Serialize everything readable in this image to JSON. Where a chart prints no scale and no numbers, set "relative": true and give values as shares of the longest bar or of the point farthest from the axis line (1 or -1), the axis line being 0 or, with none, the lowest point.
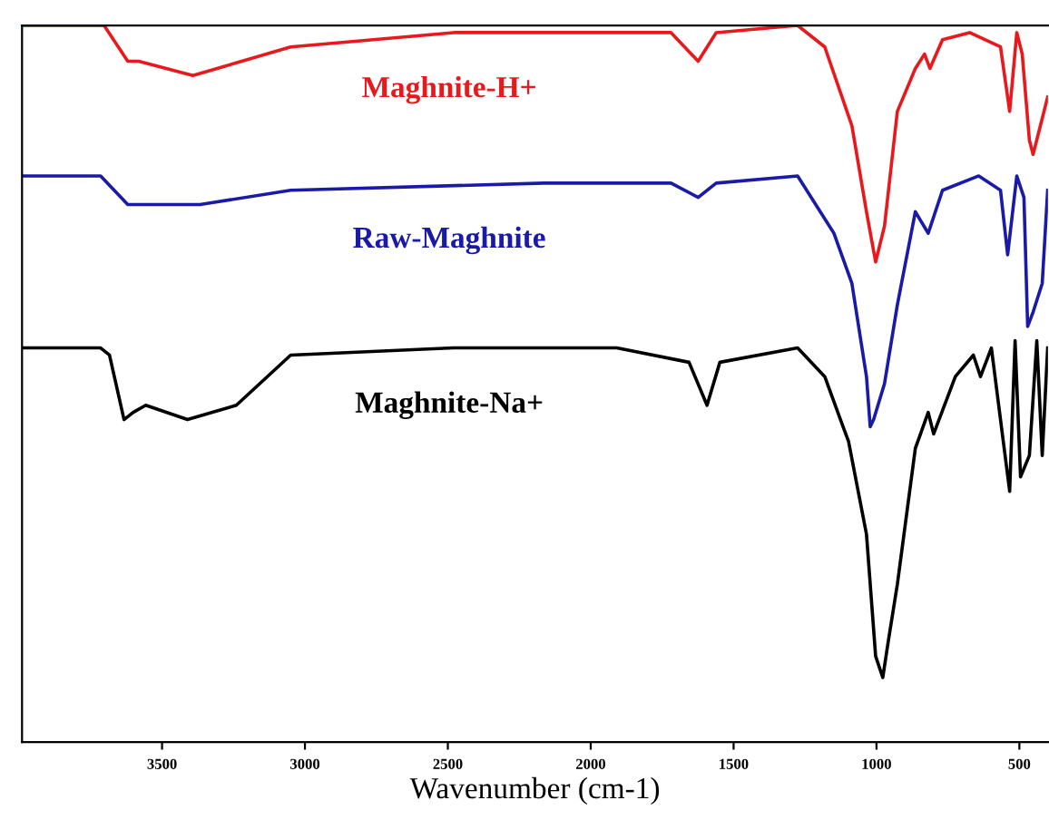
{
  "chart_data": {
    "type": "line",
    "xlabel": "Wavenumber (cm-1)",
    "relative": true,
    "xlim": [
      3990,
      400
    ],
    "xticks": [
      3500,
      3000,
      2500,
      2000,
      1500,
      1000,
      500
    ],
    "grid": false,
    "legend": false,
    "marker": "none",
    "line_style": "solid",
    "series": [
      {
        "name": "Maghnite-H+",
        "color": "#e8191c",
        "x": [
          3990,
          3703,
          3620,
          3582,
          3392,
          3050,
          2480,
          2036,
          1719,
          1624,
          1561,
          1276,
          1181,
          1086,
          1035,
          1003,
          972,
          927,
          864,
          832,
          813,
          769,
          674,
          566,
          534,
          509,
          490,
          465,
          452,
          401
        ],
        "values": [
          1.0,
          1.0,
          0.95,
          0.95,
          0.93,
          0.97,
          0.99,
          0.99,
          0.99,
          0.95,
          0.99,
          1.0,
          0.97,
          0.86,
          0.74,
          0.67,
          0.72,
          0.88,
          0.94,
          0.96,
          0.94,
          0.98,
          0.99,
          0.97,
          0.88,
          0.99,
          0.96,
          0.84,
          0.82,
          0.9
        ]
      },
      {
        "name": "Raw-Maghnite",
        "color": "#1a1aa8",
        "x": [
          3990,
          3715,
          3620,
          3367,
          3050,
          2163,
          1719,
          1624,
          1561,
          1276,
          1149,
          1086,
          1035,
          1022,
          1010,
          972,
          927,
          864,
          819,
          769,
          642,
          566,
          541,
          509,
          484,
          471,
          452,
          420,
          401
        ],
        "values": [
          0.79,
          0.79,
          0.75,
          0.75,
          0.77,
          0.78,
          0.78,
          0.76,
          0.78,
          0.79,
          0.71,
          0.64,
          0.51,
          0.44,
          0.45,
          0.5,
          0.61,
          0.74,
          0.71,
          0.77,
          0.79,
          0.77,
          0.68,
          0.79,
          0.76,
          0.58,
          0.6,
          0.64,
          0.77
        ]
      },
      {
        "name": "Maghnite-Na+",
        "color": "#000000",
        "x": [
          3990,
          3715,
          3684,
          3633,
          3601,
          3557,
          3411,
          3240,
          3050,
          2480,
          1909,
          1656,
          1593,
          1548,
          1276,
          1181,
          1117,
          1098,
          1035,
          1003,
          978,
          959,
          927,
          864,
          819,
          800,
          724,
          661,
          636,
          598,
          534,
          515,
          496,
          465,
          439,
          420,
          401
        ],
        "values": [
          0.55,
          0.55,
          0.54,
          0.45,
          0.46,
          0.47,
          0.45,
          0.47,
          0.54,
          0.55,
          0.55,
          0.53,
          0.47,
          0.53,
          0.55,
          0.51,
          0.44,
          0.42,
          0.29,
          0.12,
          0.09,
          0.14,
          0.22,
          0.41,
          0.46,
          0.43,
          0.51,
          0.54,
          0.51,
          0.55,
          0.35,
          0.56,
          0.37,
          0.4,
          0.56,
          0.4,
          0.55
        ]
      }
    ]
  }
}
